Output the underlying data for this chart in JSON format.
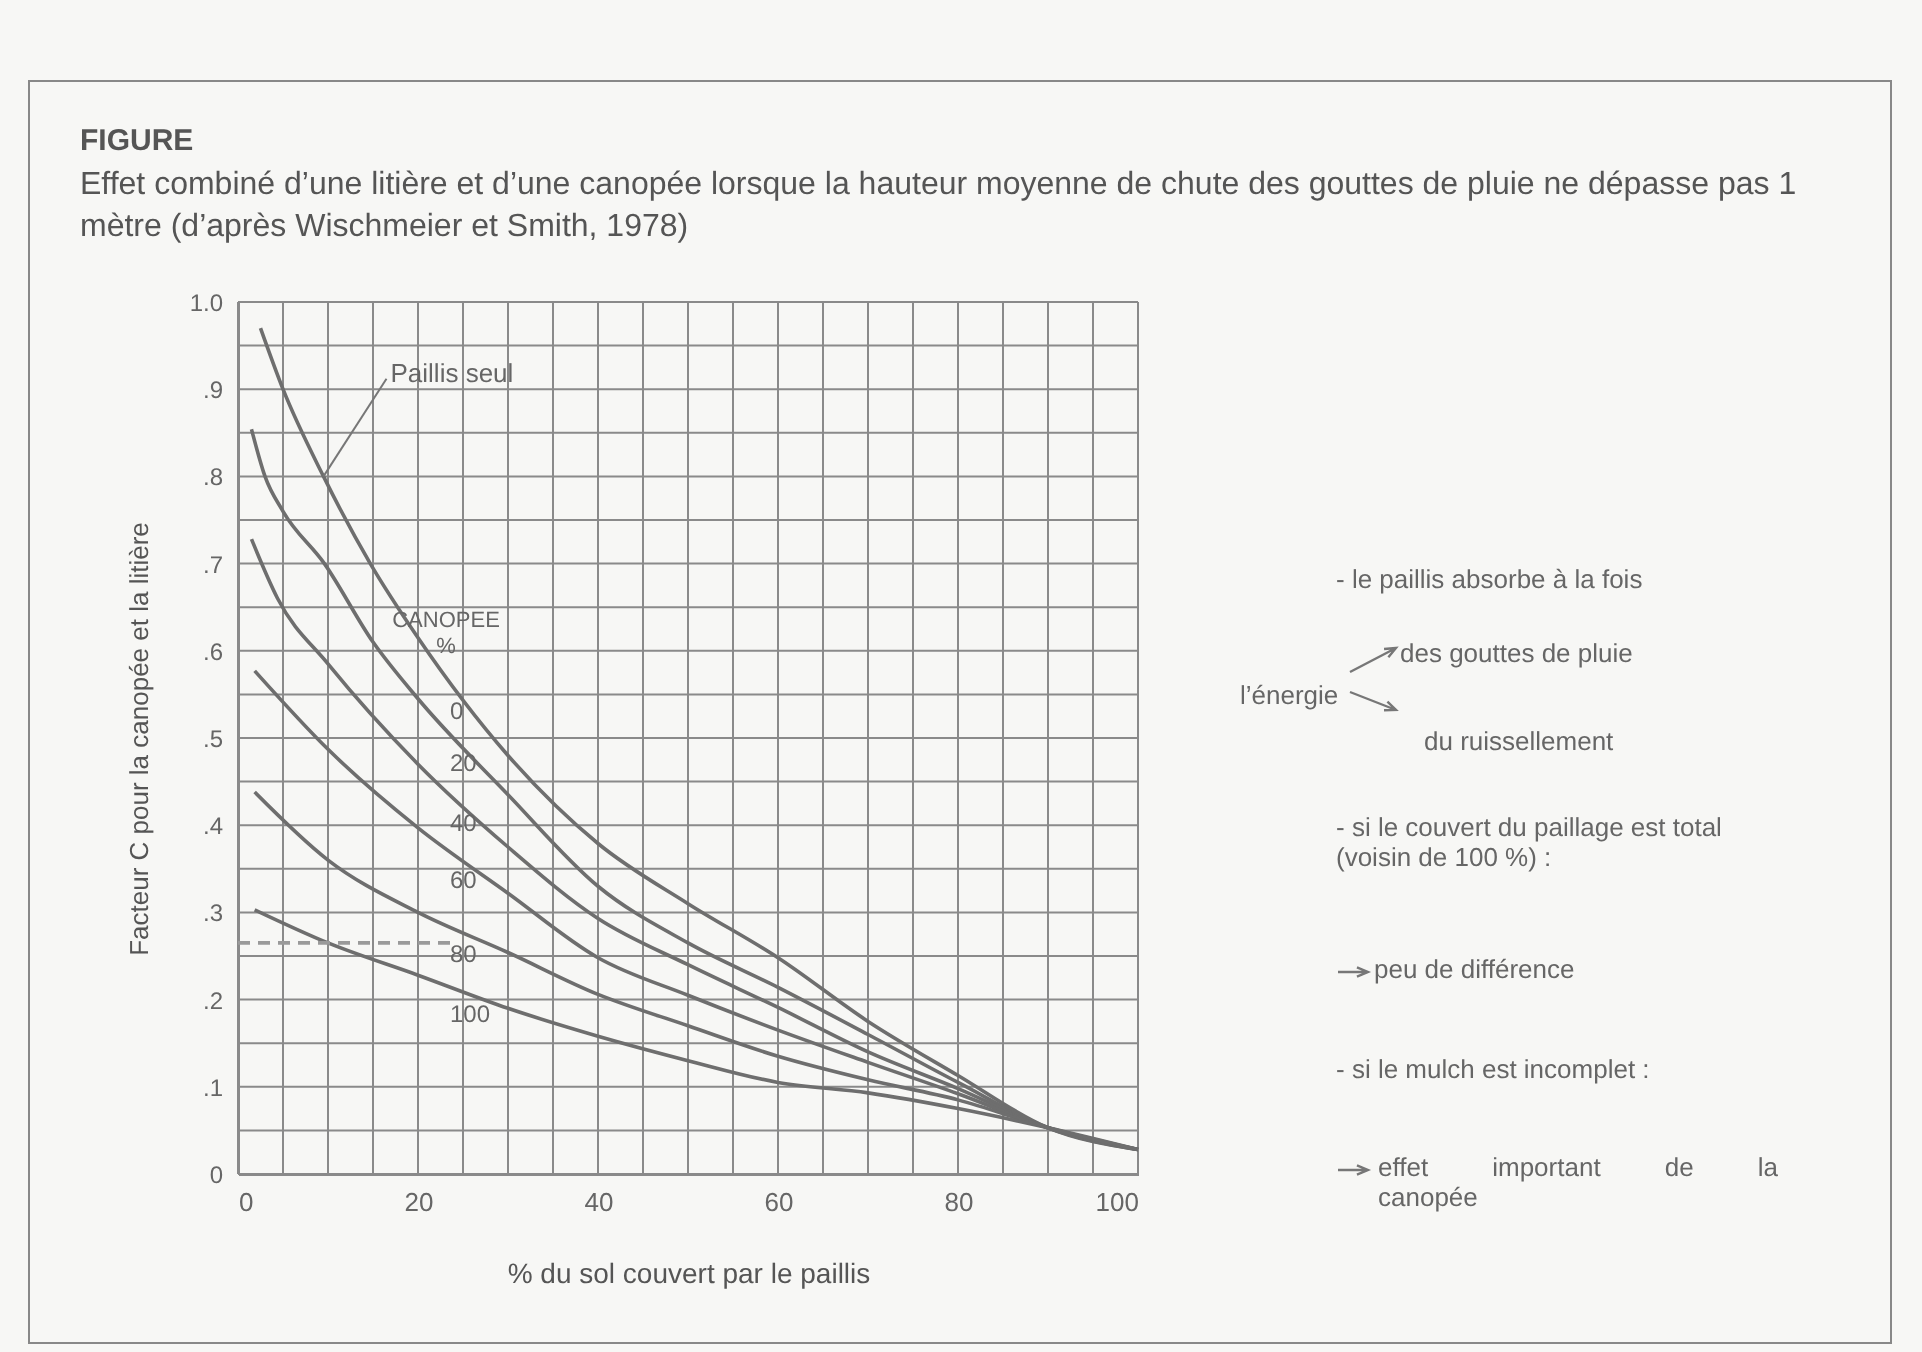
{
  "chart_data": {
    "type": "line",
    "title": "FIGURE",
    "subtitle": "Effet combiné d’une litière et d’une canopée lorsque la hauteur moyenne de chute des gouttes de pluie ne dépasse pas 1 mètre (d’après Wischmeier et Smith, 1978)",
    "xlabel": "% du sol couvert par le paillis",
    "ylabel": "Facteur C pour la canopée et la litière",
    "legend_title": "CANOPEE %",
    "xlim": [
      0,
      100
    ],
    "ylim": [
      0,
      1.0
    ],
    "xticks": [
      0,
      {
        "value": 5,
        "label": null
      },
      {
        "value": 10,
        "label": null
      },
      {
        "value": 15,
        "label": null
      },
      20,
      {
        "value": 25,
        "label": null
      },
      {
        "value": 30,
        "label": null
      },
      {
        "value": 35,
        "label": null
      },
      40,
      {
        "value": 45,
        "label": null
      },
      {
        "value": 50,
        "label": null
      },
      {
        "value": 55,
        "label": null
      },
      60,
      {
        "value": 65,
        "label": null
      },
      {
        "value": 70,
        "label": null
      },
      {
        "value": 75,
        "label": null
      },
      80,
      {
        "value": 85,
        "label": null
      },
      {
        "value": 90,
        "label": null
      },
      {
        "value": 95,
        "label": null
      },
      100
    ],
    "yticks": [
      0,
      {
        "value": 0.05,
        "label": null
      },
      {
        "value": 0.1,
        "label": ".1"
      },
      {
        "value": 0.15,
        "label": null
      },
      {
        "value": 0.2,
        "label": ".2"
      },
      {
        "value": 0.25,
        "label": null
      },
      {
        "value": 0.3,
        "label": ".3"
      },
      {
        "value": 0.35,
        "label": null
      },
      {
        "value": 0.4,
        "label": ".4"
      },
      {
        "value": 0.45,
        "label": null
      },
      {
        "value": 0.5,
        "label": ".5"
      },
      {
        "value": 0.55,
        "label": null
      },
      {
        "value": 0.6,
        "label": ".6"
      },
      {
        "value": 0.65,
        "label": null
      },
      {
        "value": 0.7,
        "label": ".7"
      },
      {
        "value": 0.75,
        "label": null
      },
      {
        "value": 0.8,
        "label": ".8"
      },
      {
        "value": 0.85,
        "label": null
      },
      {
        "value": 0.9,
        "label": ".9"
      },
      {
        "value": 0.95,
        "label": null
      },
      {
        "value": 1.0,
        "label": "1.0"
      }
    ],
    "grid": true,
    "marker": "none",
    "series": [
      {
        "name": "0",
        "color": "#6e6e6e",
        "x": [
          2.5,
          5,
          9.5,
          14.7,
          20,
          30,
          40,
          50,
          60,
          70,
          80,
          90,
          100
        ],
        "values": [
          0.97,
          0.9,
          0.8,
          0.7,
          0.615,
          0.48,
          0.379,
          0.31,
          0.248,
          0.175,
          0.113,
          0.053,
          0.028
        ]
      },
      {
        "name": "20",
        "color": "#6e6e6e",
        "x": [
          1.5,
          3,
          5,
          9.6,
          15,
          20,
          30,
          40,
          50,
          60,
          70,
          80,
          90,
          100
        ],
        "values": [
          0.854,
          0.8,
          0.76,
          0.7,
          0.61,
          0.545,
          0.435,
          0.33,
          0.265,
          0.214,
          0.16,
          0.105,
          0.053,
          0.028
        ]
      },
      {
        "name": "40",
        "color": "#6e6e6e",
        "x": [
          1.5,
          4.4,
          10,
          20,
          30,
          40,
          50,
          60,
          70,
          80,
          90,
          100
        ],
        "values": [
          0.728,
          0.66,
          0.585,
          0.47,
          0.375,
          0.293,
          0.24,
          0.191,
          0.14,
          0.098,
          0.053,
          0.028
        ]
      },
      {
        "name": "60",
        "color": "#6e6e6e",
        "x": [
          1.85,
          10,
          20,
          30,
          40,
          50,
          60,
          70,
          80,
          90,
          100
        ],
        "values": [
          0.577,
          0.487,
          0.397,
          0.322,
          0.248,
          0.205,
          0.165,
          0.128,
          0.092,
          0.053,
          0.028
        ]
      },
      {
        "name": "80",
        "color": "#6e6e6e",
        "x": [
          1.85,
          10,
          20,
          30,
          40,
          50,
          60,
          70,
          80,
          90,
          100
        ],
        "values": [
          0.438,
          0.36,
          0.3,
          0.254,
          0.206,
          0.17,
          0.135,
          0.108,
          0.085,
          0.053,
          0.028
        ]
      },
      {
        "name": "100",
        "color": "#6e6e6e",
        "x": [
          1.85,
          10,
          20,
          30,
          40,
          50,
          60,
          70,
          80,
          90,
          100
        ],
        "values": [
          0.303,
          0.265,
          0.228,
          0.19,
          0.158,
          0.13,
          0.105,
          0.093,
          0.075,
          0.053,
          0.028
        ]
      },
      {
        "color": "#9a9a9a",
        "line_style": "dashed",
        "x": [
          0,
          24
        ],
        "values": [
          0.265,
          0.265
        ]
      }
    ],
    "annotations": [
      {
        "text": "Paillis seul",
        "x": 9.5,
        "y": 0.8
      },
      "- le paillis absorbe à la fois",
      "l’énergie",
      "des gouttes de pluie",
      "du ruissellement",
      "- si le couvert du paillage est total (voisin de 100 %) :",
      "peu de différence",
      "- si le mulch est incomplet :",
      "effet important de la canopée"
    ]
  }
}
